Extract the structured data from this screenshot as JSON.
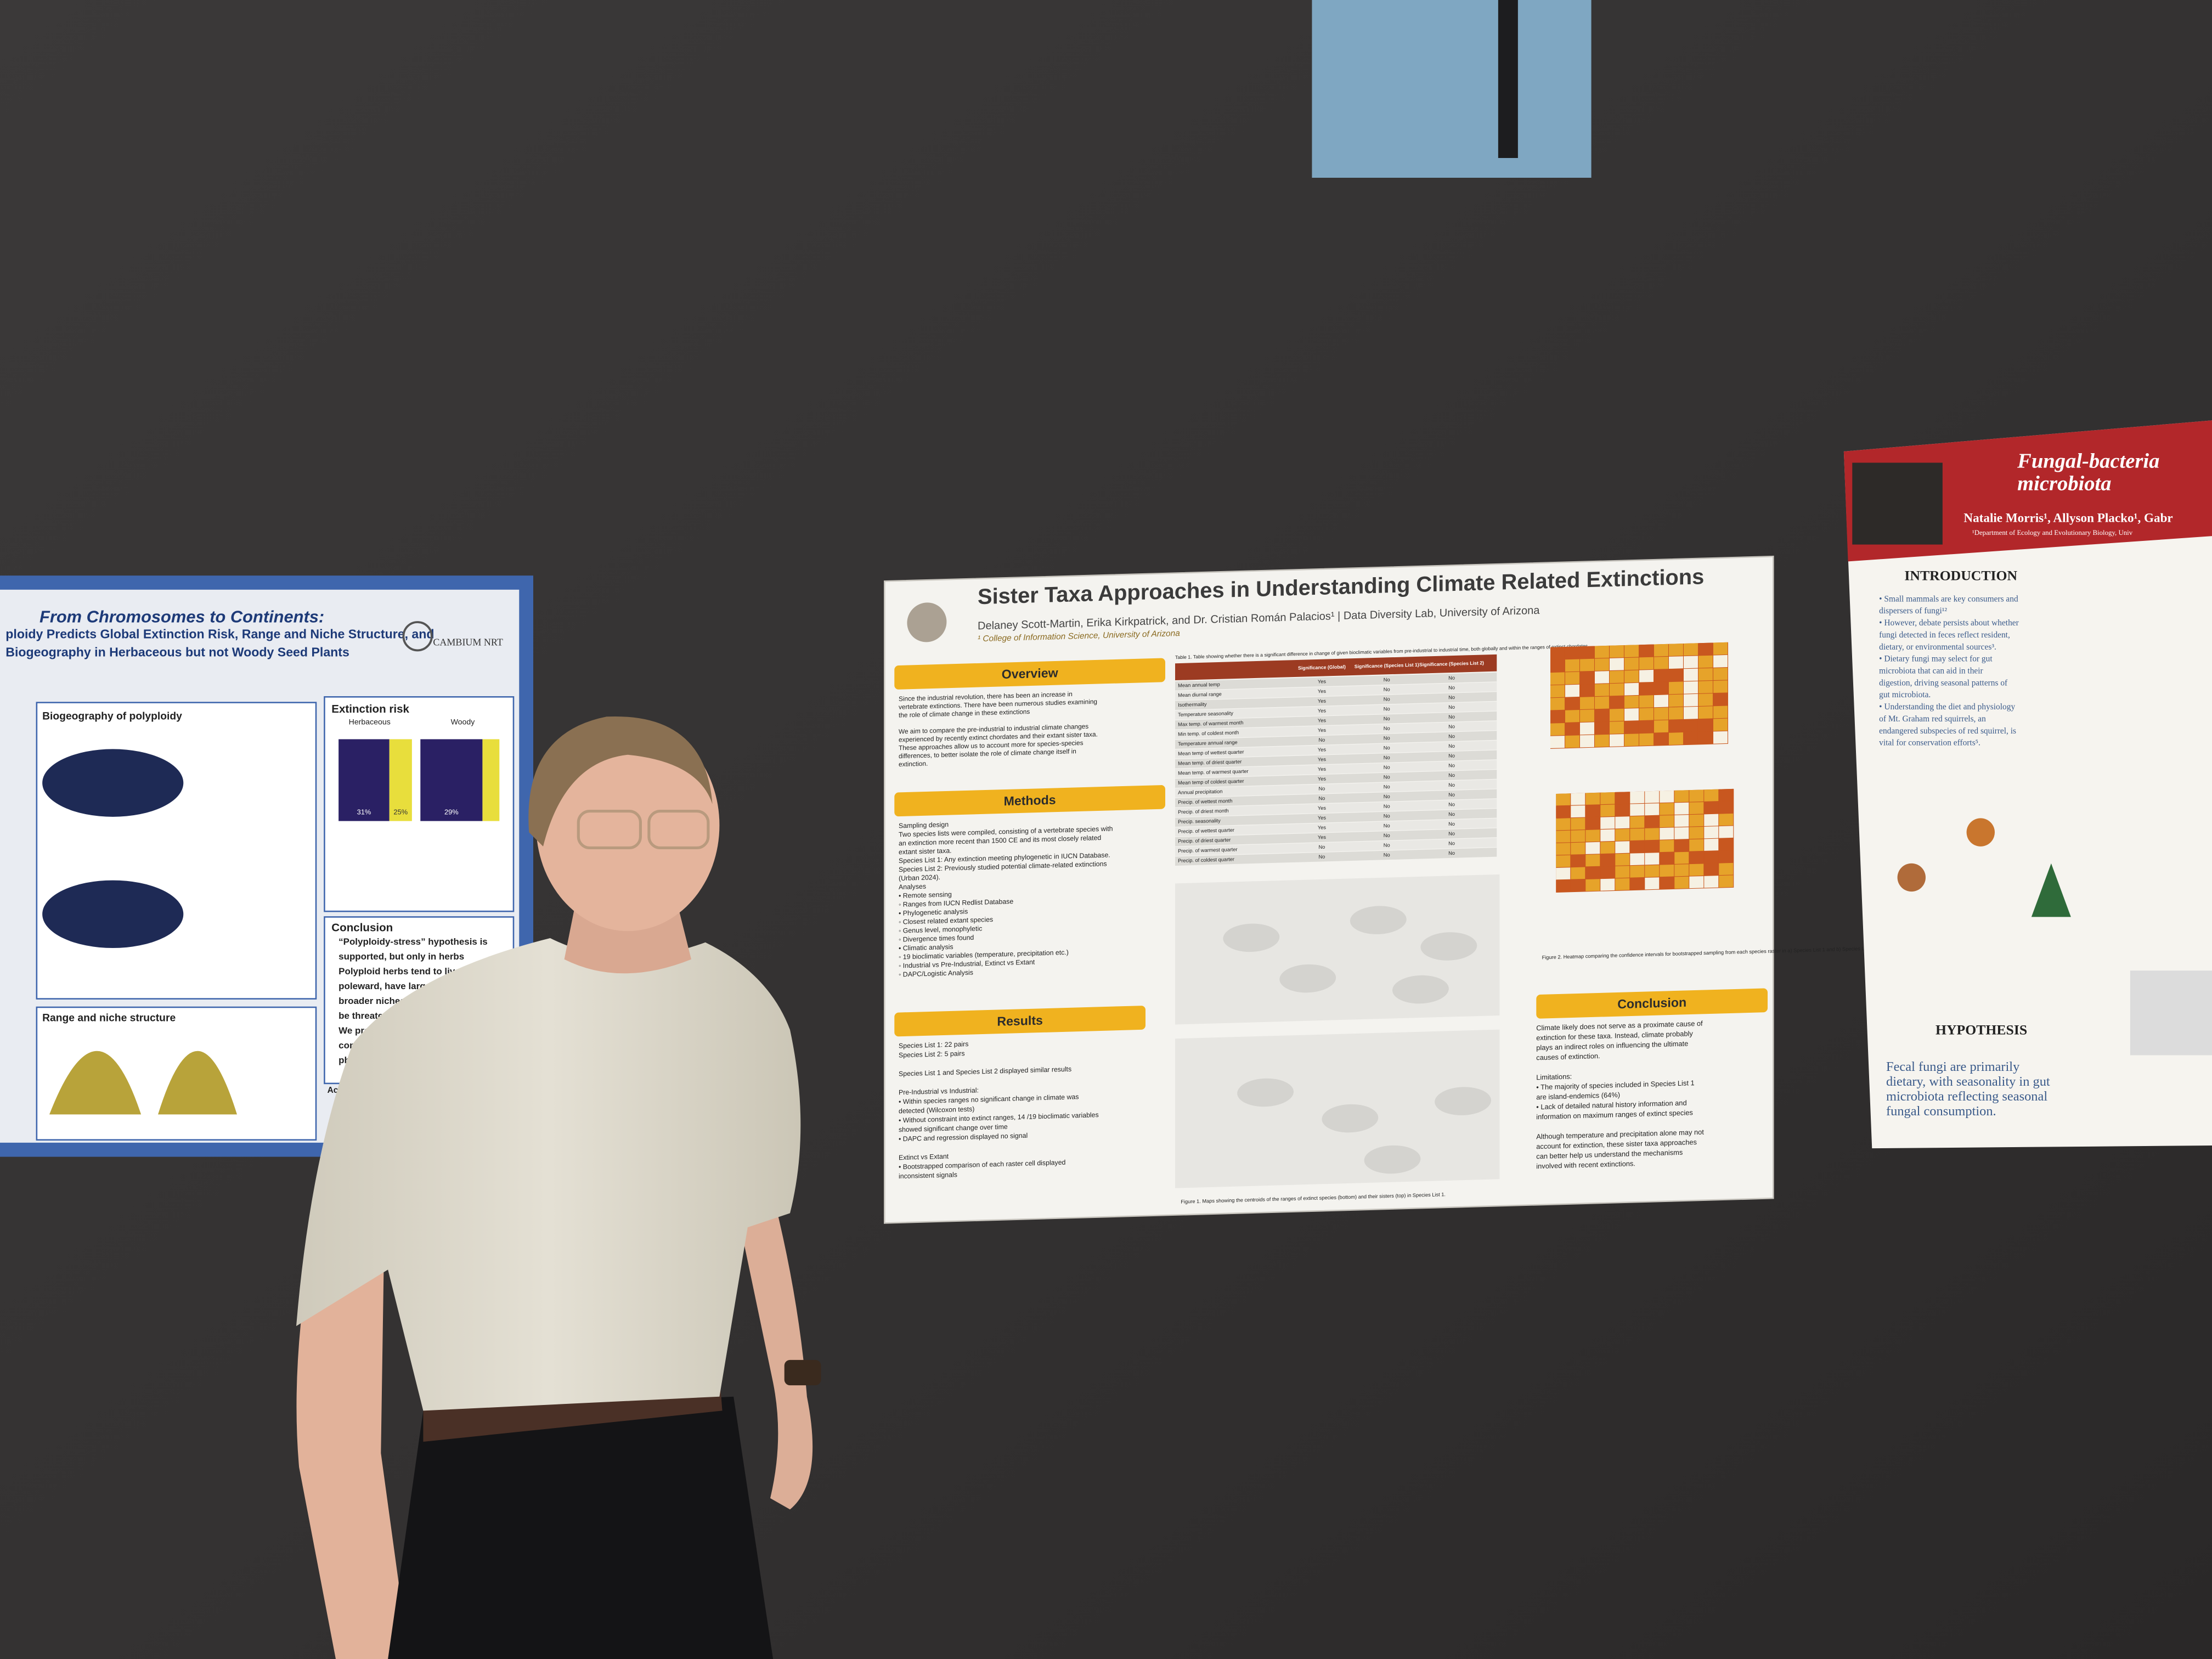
{
  "center_poster": {
    "title": "Sister Taxa Approaches in Understanding Climate Related Extinctions",
    "authors": "Delaney Scott-Martin, Erika Kirkpatrick, and Dr. Cristian Román Palacios¹ | Data Diversity Lab, University of Arizona",
    "affiliation": "¹ College of Information Science, University of Arizona",
    "overview": {
      "heading": "Overview",
      "lines": [
        "Since the industrial revolution, there has been an increase in",
        "vertebrate extinctions. There have been numerous studies examining",
        "the role of climate change in these extinctions",
        "",
        "We aim to compare the pre-industrial to industrial climate changes",
        "experienced by recently extinct chordates and their extant sister taxa.",
        "These approaches allow us to account more for species-species",
        "differences, to better isolate the role of climate change itself in",
        "extinction."
      ]
    },
    "methods": {
      "heading": "Methods",
      "lines": [
        "Sampling design",
        "Two species lists were compiled, consisting of a vertebrate species with",
        "an extinction more recent than 1500 CE and its most closely related",
        "extant sister taxa.",
        "Species List 1: Any extinction meeting phylogenetic in IUCN Database.",
        "Species List 2: Previously studied potential climate-related extinctions",
        "(Urban 2024).",
        "Analyses",
        "• Remote sensing",
        "   ◦ Ranges from IUCN Redlist Database",
        "• Phylogenetic analysis",
        "   ◦ Closest related extant species",
        "   ◦ Genus level, monophyletic",
        "   ◦ Divergence times found",
        "• Climatic analysis",
        "   ◦ 19 bioclimatic variables (temperature, precipitation etc.)",
        "   ◦ Industrial vs Pre-Industrial, Extinct vs Extant",
        "   ◦ DAPC/Logistic Analysis"
      ]
    },
    "results": {
      "heading": "Results",
      "lines": [
        "Species List 1: 22 pairs",
        "Species List 2: 5 pairs",
        "",
        "Species List 1 and Species List 2 displayed similar results",
        "",
        "Pre-Industrial vs Industrial:",
        "• Within species ranges no significant change in climate was",
        "  detected (Wilcoxon tests)",
        "• Without constraint into extinct ranges, 14 /19 bioclimatic variables",
        "  showed significant change over time",
        "• DAPC and regression displayed no signal",
        "",
        "Extinct vs Extant",
        "• Bootstrapped comparison of each raster cell displayed",
        "  inconsistent signals"
      ]
    },
    "conclusion": {
      "heading": "Conclusion",
      "lines": [
        "Climate likely does not serve as a proximate cause of",
        "extinction for these taxa. Instead, climate probably",
        "plays an indirect roles on influencing the ultimate",
        "causes of extinction.",
        "",
        "Limitations:",
        "• The majority of species included in Species List 1",
        "  are island-endemics (64%)",
        "• Lack of detailed natural history information and",
        "  information on maximum ranges of extinct species",
        "",
        "Although temperature and precipitation alone may not",
        "account for extinction, these sister taxa approaches",
        "can better help us understand the mechanisms",
        "involved with recent extinctions."
      ]
    },
    "table_caption": "Table 1. Table showing whether there is a significant difference in change of given bioclimatic variables from pre-industrial to industrial time, both globally and within the ranges of extinct chordates",
    "table_headers": [
      "Significance (Global)",
      "Significance (Species List 1)",
      "Significance (Species List 2)"
    ],
    "table_rows": [
      [
        "Mean annual temp",
        "Yes",
        "No",
        "No"
      ],
      [
        "Mean diurnal range",
        "Yes",
        "No",
        "No"
      ],
      [
        "Isothermality",
        "Yes",
        "No",
        "No"
      ],
      [
        "Temperature seasonality",
        "Yes",
        "No",
        "No"
      ],
      [
        "Max temp. of warmest month",
        "Yes",
        "No",
        "No"
      ],
      [
        "Min temp. of coldest month",
        "Yes",
        "No",
        "No"
      ],
      [
        "Temperature annual range",
        "No",
        "No",
        "No"
      ],
      [
        "Mean temp of wettest quarter",
        "Yes",
        "No",
        "No"
      ],
      [
        "Mean temp. of driest quarter",
        "Yes",
        "No",
        "No"
      ],
      [
        "Mean temp. of warmest quarter",
        "Yes",
        "No",
        "No"
      ],
      [
        "Mean temp of coldest quarter",
        "Yes",
        "No",
        "No"
      ],
      [
        "Annual precipitation",
        "No",
        "No",
        "No"
      ],
      [
        "Precip. of wettest month",
        "No",
        "No",
        "No"
      ],
      [
        "Precip. of driest month",
        "Yes",
        "No",
        "No"
      ],
      [
        "Precip. seasonality",
        "Yes",
        "No",
        "No"
      ],
      [
        "Precip. of wettest quarter",
        "Yes",
        "No",
        "No"
      ],
      [
        "Precip. of driest quarter",
        "Yes",
        "No",
        "No"
      ],
      [
        "Precip. of warmest quarter",
        "No",
        "No",
        "No"
      ],
      [
        "Precip. of coldest quarter",
        "No",
        "No",
        "No"
      ]
    ],
    "heatmap_caption": "Figure 2. Heatmap comparing the confidence intervals for bootstrapped sampling from each species raster in a) Species List 1 and b) Species List 2",
    "map_caption": "Figure 1. Maps showing the centroids of the ranges of extinct species (bottom) and their sisters (top) in Species List 1."
  },
  "left_poster": {
    "title": "From Chromosomes to Continents:",
    "subtitle_lines": [
      "ploidy Predicts Global Extinction Risk, Range and Niche Structure, and",
      "Biogeography in Herbaceous but not Woody Seed Plants"
    ],
    "logo": "CAMBIUM NRT",
    "biogeography_heading": "Biogeography of polyploidy",
    "extinction_heading": "Extinction risk",
    "extinction_groups": [
      "Herbaceous",
      "Woody"
    ],
    "extinction_percent_labels": [
      "31%",
      "25%",
      "29%"
    ],
    "conclusion_heading": "Conclusion",
    "conclusion_lines": [
      "“Polyploidy-stress” hypothesis is",
      "supported, but only in herbs",
      "Polyploid herbs tend to live",
      "poleward, have larger ran",
      "broader niches, and a",
      "be threatened wit",
      "We propose",
      "constraint",
      "physiolog"
    ],
    "range_heading": "Range and niche structure",
    "acknowledgements": "Acknowle"
  },
  "right_poster": {
    "title_lines": [
      "Fungal-bacteria",
      "microbiota"
    ],
    "authors": "Natalie Morris¹, Allyson Placko¹, Gabr",
    "department": "¹Department of Ecology and Evolutionary Biology, Univ",
    "introduction_heading": "INTRODUCTION",
    "introduction_lines": [
      "• Small mammals are key consumers and",
      "  dispersers of fungi¹²",
      "• However, debate persists about whether",
      "  fungi detected in feces reflect resident,",
      "  dietary, or environmental sources³.",
      "• Dietary fungi may select for gut",
      "  microbiota that can aid in their",
      "  digestion, driving seasonal patterns of",
      "  gut microbiota.",
      "• Understanding the diet and physiology",
      "  of Mt. Graham red squirrels, an",
      "  endangered subspecies of red squirrel, is",
      "  vital for conservation efforts⁵."
    ],
    "hypothesis_heading": "HYPOTHESIS",
    "hypothesis_lines": [
      "Fecal fungi are primarily",
      "dietary, with seasonality in gut",
      "microbiota reflecting seasonal",
      "fungal consumption."
    ]
  }
}
